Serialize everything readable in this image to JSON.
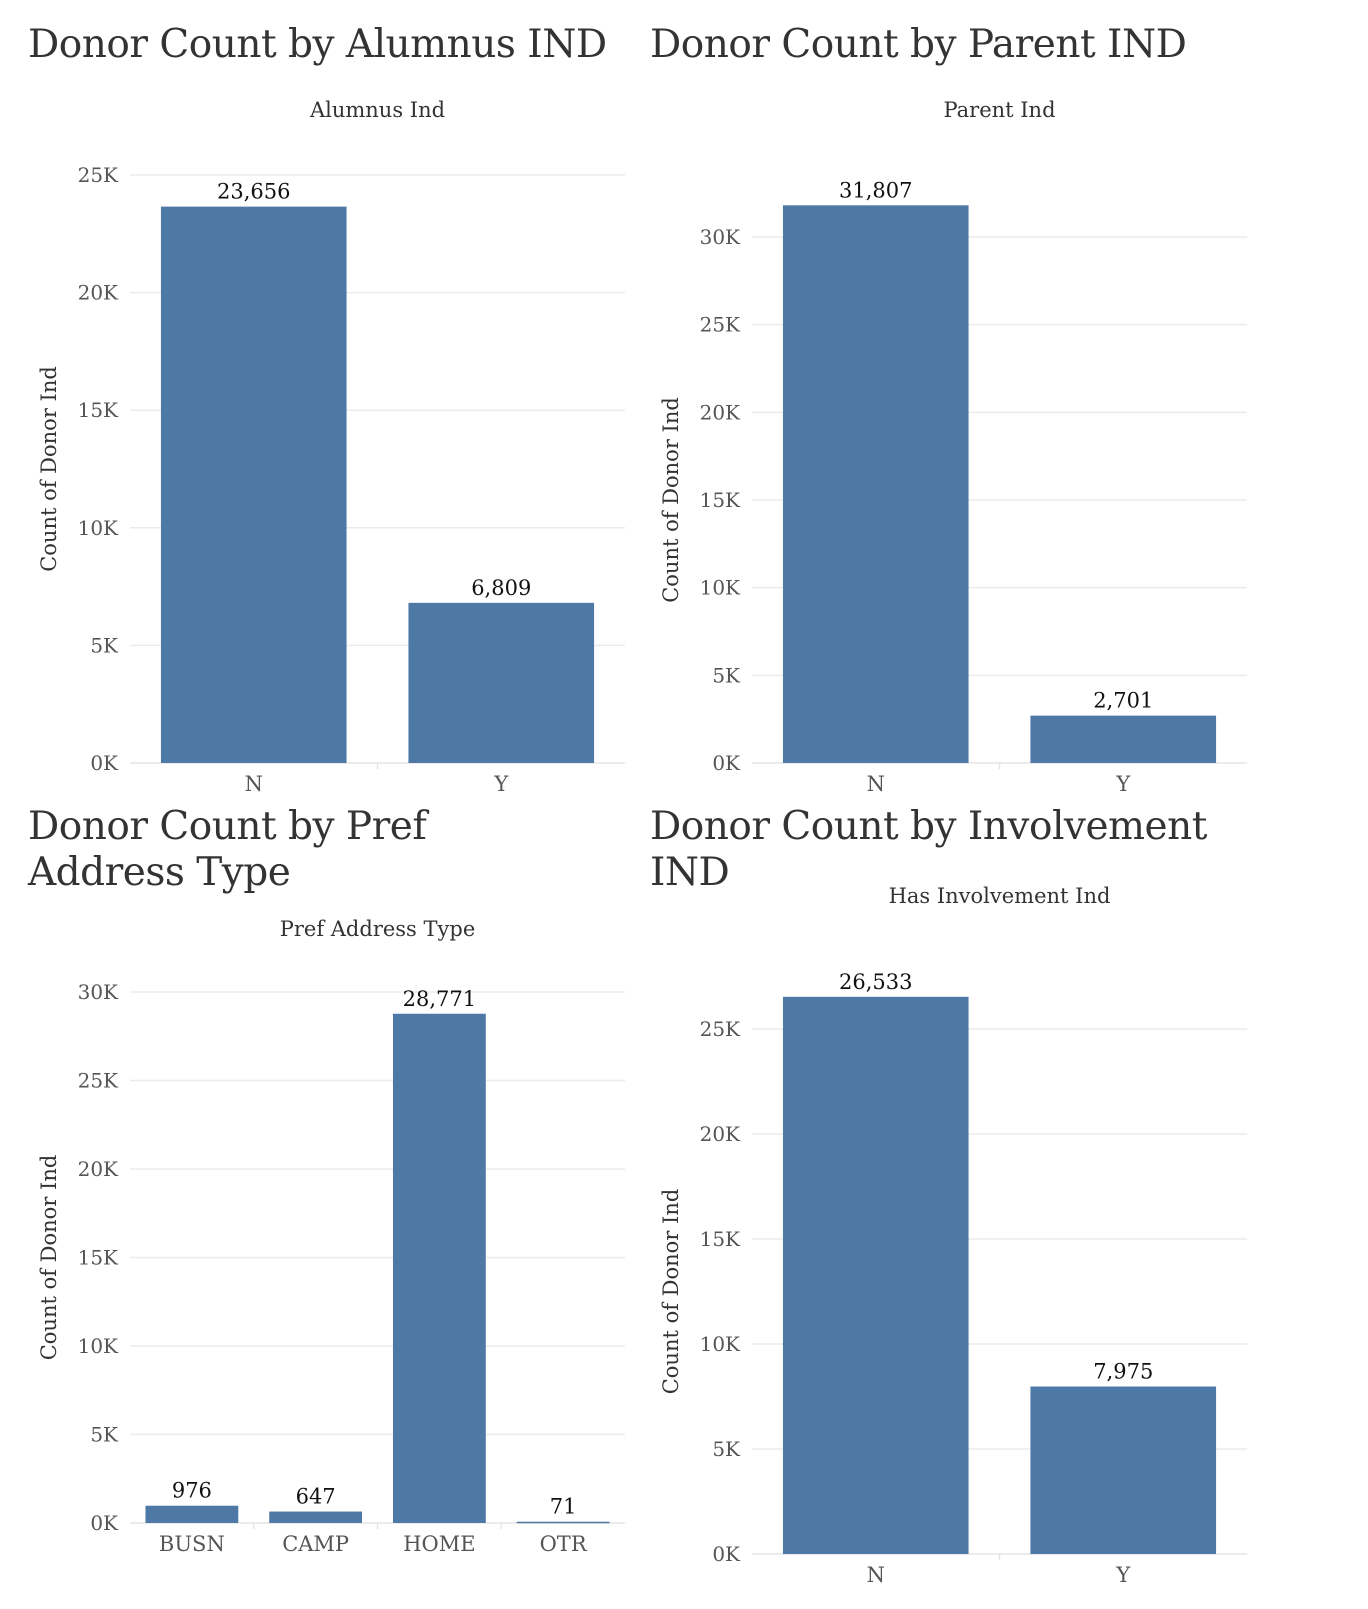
{
  "bar_color": "#4e79a7",
  "chart_data": [
    {
      "type": "bar",
      "heading": "Donor Count by Alumnus IND",
      "title": "Alumnus Ind",
      "xlabel": "",
      "ylabel": "Count of Donor Ind",
      "categories": [
        "N",
        "Y"
      ],
      "values": [
        23656,
        6809
      ],
      "value_labels": [
        "23,656",
        "6,809"
      ],
      "ylim": [
        0,
        25000
      ],
      "yticks": [
        0,
        5000,
        10000,
        15000,
        20000,
        25000
      ],
      "ytick_labels": [
        "0K",
        "5K",
        "10K",
        "15K",
        "20K",
        "25K"
      ],
      "grid": true
    },
    {
      "type": "bar",
      "heading": "Donor Count by Parent IND",
      "title": "Parent Ind",
      "xlabel": "",
      "ylabel": "Count of Donor Ind",
      "categories": [
        "N",
        "Y"
      ],
      "values": [
        31807,
        2701
      ],
      "value_labels": [
        "31,807",
        "2,701"
      ],
      "ylim": [
        0,
        30000
      ],
      "yticks": [
        0,
        5000,
        10000,
        15000,
        20000,
        25000,
        30000
      ],
      "ytick_labels": [
        "0K",
        "5K",
        "10K",
        "15K",
        "20K",
        "25K",
        "30K"
      ],
      "grid": true
    },
    {
      "type": "bar",
      "heading": "Donor Count by Pref Address Type",
      "title": "Pref Address Type",
      "xlabel": "",
      "ylabel": "Count of Donor Ind",
      "categories": [
        "BUSN",
        "CAMP",
        "HOME",
        "OTR"
      ],
      "values": [
        976,
        647,
        28771,
        71
      ],
      "value_labels": [
        "976",
        "647",
        "28,771",
        "71"
      ],
      "ylim": [
        0,
        30000
      ],
      "yticks": [
        0,
        5000,
        10000,
        15000,
        20000,
        25000,
        30000
      ],
      "ytick_labels": [
        "0K",
        "5K",
        "10K",
        "15K",
        "20K",
        "25K",
        "30K"
      ],
      "grid": true
    },
    {
      "type": "bar",
      "heading": "Donor Count by Involvement IND",
      "title": "Has Involvement Ind",
      "xlabel": "",
      "ylabel": "Count of Donor Ind",
      "categories": [
        "N",
        "Y"
      ],
      "values": [
        26533,
        7975
      ],
      "value_labels": [
        "26,533",
        "7,975"
      ],
      "ylim": [
        0,
        25000
      ],
      "yticks": [
        0,
        5000,
        10000,
        15000,
        20000,
        25000
      ],
      "ytick_labels": [
        "0K",
        "5K",
        "10K",
        "15K",
        "20K",
        "25K"
      ],
      "grid": true
    }
  ]
}
